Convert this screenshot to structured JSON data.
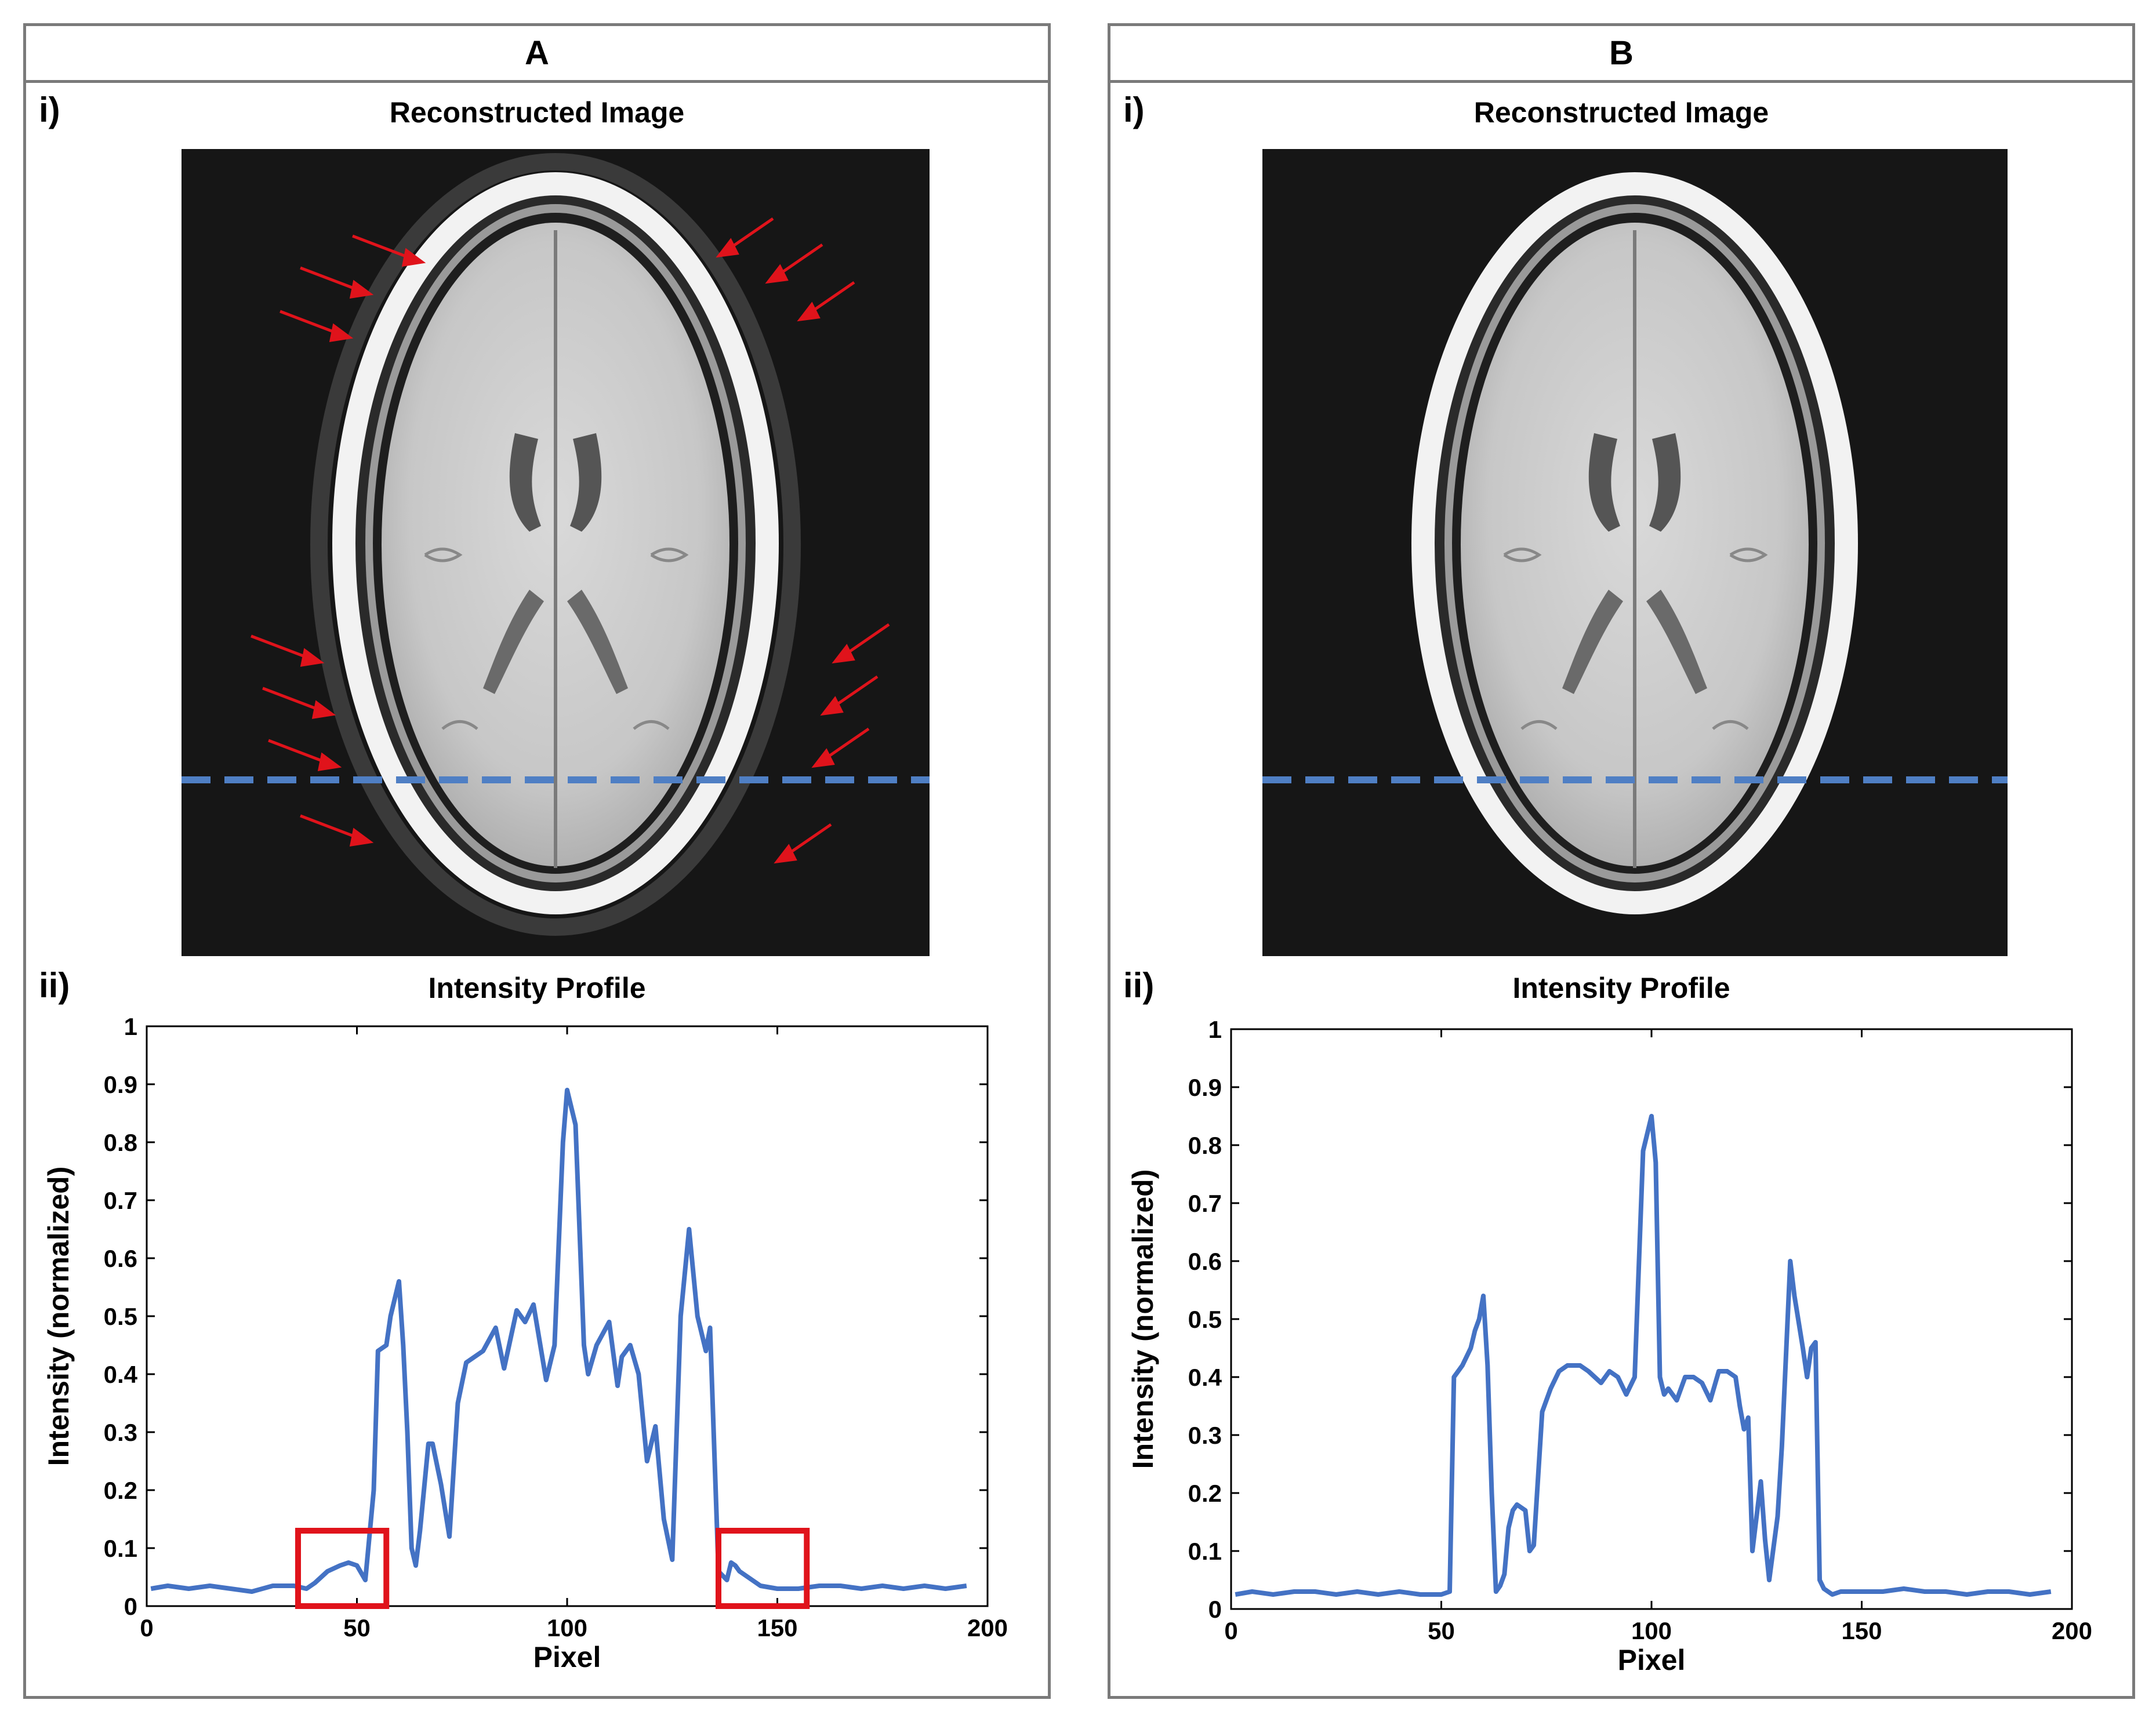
{
  "colors": {
    "line": "#4472c4",
    "dash": "#4f7fc4",
    "arrow": "#e0131b",
    "box": "#e0131b",
    "border": "#7a7a7a"
  },
  "panels": [
    {
      "header": "A",
      "image_label": "i)",
      "image_title": "Reconstructed Image",
      "plot_label": "ii)",
      "plot_title": "Intensity Profile"
    },
    {
      "header": "B",
      "image_label": "i)",
      "image_title": "Reconstructed Image",
      "plot_label": "ii)",
      "plot_title": "Intensity Profile"
    }
  ],
  "chart_data": [
    {
      "type": "line",
      "title": "Intensity Profile",
      "xlabel": "Pixel",
      "ylabel": "Intensity (normalized)",
      "xlim": [
        0,
        200
      ],
      "ylim": [
        0,
        1
      ],
      "xticks": [
        0,
        50,
        100,
        150,
        200
      ],
      "yticks": [
        0,
        0.1,
        0.2,
        0.3,
        0.4,
        0.5,
        0.6,
        0.7,
        0.8,
        0.9,
        1
      ],
      "ytick_labels": [
        "0",
        "0.1",
        "0.2",
        "0.3",
        "0.4",
        "0.5",
        "0.6",
        "0.7",
        "0.8",
        "0.9",
        "1"
      ],
      "grid": false,
      "highlight_boxes": [
        {
          "x": [
            36,
            57
          ],
          "y": [
            0,
            0.13
          ]
        },
        {
          "x": [
            136,
            157
          ],
          "y": [
            0,
            0.13
          ]
        }
      ],
      "series": [
        {
          "x": [
            1,
            5,
            10,
            15,
            20,
            25,
            30,
            35,
            38,
            40,
            43,
            46,
            48,
            50,
            52,
            54,
            55,
            57,
            58,
            60,
            61,
            62,
            63,
            64,
            65,
            67,
            68,
            70,
            72,
            74,
            76,
            78,
            80,
            83,
            85,
            88,
            90,
            92,
            95,
            97,
            99,
            100,
            102,
            104,
            105,
            107,
            110,
            112,
            113,
            115,
            117,
            119,
            121,
            123,
            125,
            127,
            129,
            131,
            133,
            134,
            136,
            138,
            139,
            140,
            141,
            143,
            146,
            150,
            155,
            160,
            165,
            170,
            175,
            180,
            185,
            190,
            195
          ],
          "y": [
            0.03,
            0.035,
            0.03,
            0.035,
            0.03,
            0.025,
            0.035,
            0.035,
            0.03,
            0.04,
            0.06,
            0.07,
            0.075,
            0.07,
            0.045,
            0.2,
            0.44,
            0.45,
            0.5,
            0.56,
            0.45,
            0.3,
            0.1,
            0.07,
            0.13,
            0.28,
            0.28,
            0.21,
            0.12,
            0.35,
            0.42,
            0.43,
            0.44,
            0.48,
            0.41,
            0.51,
            0.49,
            0.52,
            0.39,
            0.45,
            0.8,
            0.89,
            0.83,
            0.45,
            0.4,
            0.45,
            0.49,
            0.38,
            0.43,
            0.45,
            0.4,
            0.25,
            0.31,
            0.15,
            0.08,
            0.5,
            0.65,
            0.5,
            0.44,
            0.48,
            0.06,
            0.045,
            0.075,
            0.07,
            0.06,
            0.05,
            0.035,
            0.03,
            0.03,
            0.035,
            0.035,
            0.03,
            0.035,
            0.03,
            0.035,
            0.03,
            0.035
          ]
        }
      ]
    },
    {
      "type": "line",
      "title": "Intensity Profile",
      "xlabel": "Pixel",
      "ylabel": "Intensity (normalized)",
      "xlim": [
        0,
        200
      ],
      "ylim": [
        0,
        1
      ],
      "xticks": [
        0,
        50,
        100,
        150,
        200
      ],
      "yticks": [
        0,
        0.1,
        0.2,
        0.3,
        0.4,
        0.5,
        0.6,
        0.7,
        0.8,
        0.9,
        1
      ],
      "ytick_labels": [
        "0",
        "0.1",
        "0.2",
        "0.3",
        "0.4",
        "0.5",
        "0.6",
        "0.7",
        "0.8",
        "0.9",
        "1"
      ],
      "grid": false,
      "highlight_boxes": [],
      "series": [
        {
          "x": [
            1,
            5,
            10,
            15,
            20,
            25,
            30,
            35,
            40,
            45,
            50,
            52,
            53,
            55,
            57,
            58,
            59,
            60,
            61,
            62,
            63,
            64,
            65,
            66,
            67,
            68,
            70,
            71,
            72,
            74,
            76,
            78,
            80,
            83,
            85,
            88,
            90,
            92,
            94,
            96,
            98,
            100,
            101,
            102,
            103,
            104,
            106,
            108,
            110,
            112,
            114,
            116,
            118,
            120,
            121,
            122,
            123,
            124,
            126,
            127,
            128,
            130,
            131,
            133,
            134,
            136,
            137,
            138,
            139,
            140,
            141,
            143,
            145,
            150,
            155,
            160,
            165,
            170,
            175,
            180,
            185,
            190,
            195
          ],
          "y": [
            0.025,
            0.03,
            0.025,
            0.03,
            0.03,
            0.025,
            0.03,
            0.025,
            0.03,
            0.025,
            0.025,
            0.03,
            0.4,
            0.42,
            0.45,
            0.48,
            0.5,
            0.54,
            0.42,
            0.2,
            0.03,
            0.04,
            0.06,
            0.14,
            0.17,
            0.18,
            0.17,
            0.1,
            0.11,
            0.34,
            0.38,
            0.41,
            0.42,
            0.42,
            0.41,
            0.39,
            0.41,
            0.4,
            0.37,
            0.4,
            0.79,
            0.85,
            0.77,
            0.4,
            0.37,
            0.38,
            0.36,
            0.4,
            0.4,
            0.39,
            0.36,
            0.41,
            0.41,
            0.4,
            0.35,
            0.31,
            0.33,
            0.1,
            0.22,
            0.12,
            0.05,
            0.16,
            0.28,
            0.6,
            0.54,
            0.45,
            0.4,
            0.45,
            0.46,
            0.05,
            0.035,
            0.025,
            0.03,
            0.03,
            0.03,
            0.035,
            0.03,
            0.03,
            0.025,
            0.03,
            0.03,
            0.025,
            0.03
          ]
        }
      ]
    }
  ]
}
